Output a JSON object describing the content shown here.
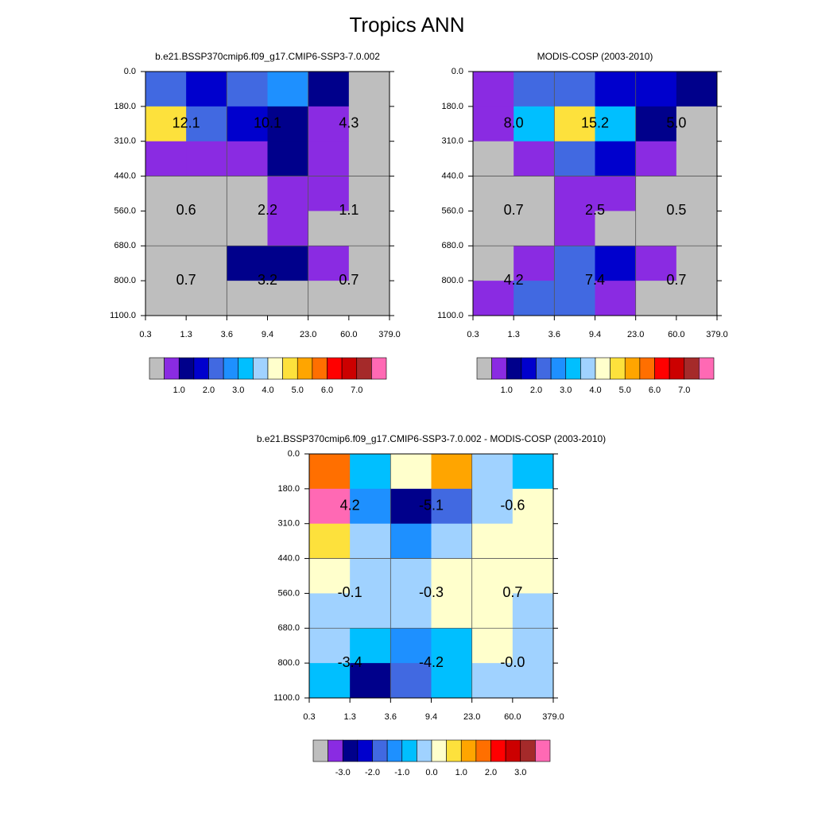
{
  "title": "Tropics ANN",
  "chart_data": [
    {
      "type": "heatmap",
      "title": "b.e21.BSSP370cmip6.f09_g17.CMIP6-SSP3-7.0.002",
      "x_edges": [
        "0.3",
        "1.3",
        "3.6",
        "9.4",
        "23.0",
        "60.0",
        "379.0"
      ],
      "y_edges": [
        "0.0",
        "180.0",
        "310.0",
        "440.0",
        "560.0",
        "680.0",
        "800.0",
        "1100.0"
      ],
      "cell_colors": [
        [
          "#4169e1",
          "#0000cd",
          "#4169e1",
          "#1e90ff",
          "#00008b",
          "#bebebe"
        ],
        [
          "#fde13c",
          "#4169e1",
          "#0000cd",
          "#00008b",
          "#8a2be2",
          "#bebebe"
        ],
        [
          "#8a2be2",
          "#8a2be2",
          "#8a2be2",
          "#00008b",
          "#8a2be2",
          "#bebebe"
        ],
        [
          "#bebebe",
          "#bebebe",
          "#bebebe",
          "#8a2be2",
          "#8a2be2",
          "#bebebe"
        ],
        [
          "#bebebe",
          "#bebebe",
          "#bebebe",
          "#8a2be2",
          "#bebebe",
          "#bebebe"
        ],
        [
          "#bebebe",
          "#bebebe",
          "#00008b",
          "#00008b",
          "#8a2be2",
          "#bebebe"
        ],
        [
          "#bebebe",
          "#bebebe",
          "#bebebe",
          "#bebebe",
          "#bebebe",
          "#bebebe"
        ]
      ],
      "values": [
        12.1,
        10.1,
        4.3,
        0.6,
        2.2,
        1.1,
        0.7,
        3.2,
        0.7
      ],
      "value_labels": [
        "12.1",
        "10.1",
        "4.3",
        "0.6",
        "2.2",
        "1.1",
        "0.7",
        "3.2",
        "0.7"
      ],
      "colorbar": {
        "colors": [
          "#bebebe",
          "#8a2be2",
          "#00008b",
          "#0000cd",
          "#4169e1",
          "#1e90ff",
          "#00bfff",
          "#a0d2ff",
          "#ffffcc",
          "#fde13c",
          "#ffa500",
          "#ff6f00",
          "#ff0000",
          "#cc0000",
          "#a52a2a",
          "#ff69b4"
        ],
        "lim": [
          0,
          8
        ],
        "ticks": [
          {
            "value": 1,
            "label": "1.0"
          },
          {
            "value": 2,
            "label": "2.0"
          },
          {
            "value": 3,
            "label": "3.0"
          },
          {
            "value": 4,
            "label": "4.0"
          },
          {
            "value": 5,
            "label": "5.0"
          },
          {
            "value": 6,
            "label": "6.0"
          },
          {
            "value": 7,
            "label": "7.0"
          }
        ]
      }
    },
    {
      "type": "heatmap",
      "title": "MODIS-COSP (2003-2010)",
      "x_edges": [
        "0.3",
        "1.3",
        "3.6",
        "9.4",
        "23.0",
        "60.0",
        "379.0"
      ],
      "y_edges": [
        "0.0",
        "180.0",
        "310.0",
        "440.0",
        "560.0",
        "680.0",
        "800.0",
        "1100.0"
      ],
      "cell_colors": [
        [
          "#8a2be2",
          "#4169e1",
          "#4169e1",
          "#0000cd",
          "#0000cd",
          "#00008b"
        ],
        [
          "#8a2be2",
          "#00bfff",
          "#fde13c",
          "#00bfff",
          "#00008b",
          "#bebebe"
        ],
        [
          "#bebebe",
          "#8a2be2",
          "#4169e1",
          "#0000cd",
          "#8a2be2",
          "#bebebe"
        ],
        [
          "#bebebe",
          "#bebebe",
          "#8a2be2",
          "#8a2be2",
          "#bebebe",
          "#bebebe"
        ],
        [
          "#bebebe",
          "#bebebe",
          "#8a2be2",
          "#bebebe",
          "#bebebe",
          "#bebebe"
        ],
        [
          "#bebebe",
          "#8a2be2",
          "#4169e1",
          "#0000cd",
          "#8a2be2",
          "#bebebe"
        ],
        [
          "#8a2be2",
          "#4169e1",
          "#4169e1",
          "#8a2be2",
          "#bebebe",
          "#bebebe"
        ]
      ],
      "values": [
        8.0,
        15.2,
        5.0,
        0.7,
        2.5,
        0.5,
        4.2,
        7.4,
        0.7
      ],
      "value_labels": [
        "8.0",
        "15.2",
        "5.0",
        "0.7",
        "2.5",
        "0.5",
        "4.2",
        "7.4",
        "0.7"
      ],
      "colorbar": {
        "colors": [
          "#bebebe",
          "#8a2be2",
          "#00008b",
          "#0000cd",
          "#4169e1",
          "#1e90ff",
          "#00bfff",
          "#a0d2ff",
          "#ffffcc",
          "#fde13c",
          "#ffa500",
          "#ff6f00",
          "#ff0000",
          "#cc0000",
          "#a52a2a",
          "#ff69b4"
        ],
        "lim": [
          0,
          8
        ],
        "ticks": [
          {
            "value": 1,
            "label": "1.0"
          },
          {
            "value": 2,
            "label": "2.0"
          },
          {
            "value": 3,
            "label": "3.0"
          },
          {
            "value": 4,
            "label": "4.0"
          },
          {
            "value": 5,
            "label": "5.0"
          },
          {
            "value": 6,
            "label": "6.0"
          },
          {
            "value": 7,
            "label": "7.0"
          }
        ]
      }
    },
    {
      "type": "heatmap",
      "title": "b.e21.BSSP370cmip6.f09_g17.CMIP6-SSP3-7.0.002 - MODIS-COSP (2003-2010)",
      "x_edges": [
        "0.3",
        "1.3",
        "3.6",
        "9.4",
        "23.0",
        "60.0",
        "379.0"
      ],
      "y_edges": [
        "0.0",
        "180.0",
        "310.0",
        "440.0",
        "560.0",
        "680.0",
        "800.0",
        "1100.0"
      ],
      "cell_colors": [
        [
          "#ff6f00",
          "#00bfff",
          "#ffffcc",
          "#ffa500",
          "#a0d2ff",
          "#00bfff"
        ],
        [
          "#ff69b4",
          "#1e90ff",
          "#00008b",
          "#4169e1",
          "#a0d2ff",
          "#ffffcc"
        ],
        [
          "#fde13c",
          "#a0d2ff",
          "#1e90ff",
          "#a0d2ff",
          "#ffffcc",
          "#ffffcc"
        ],
        [
          "#ffffcc",
          "#a0d2ff",
          "#a0d2ff",
          "#ffffcc",
          "#ffffcc",
          "#ffffcc"
        ],
        [
          "#a0d2ff",
          "#a0d2ff",
          "#a0d2ff",
          "#ffffcc",
          "#ffffcc",
          "#a0d2ff"
        ],
        [
          "#a0d2ff",
          "#00bfff",
          "#1e90ff",
          "#00bfff",
          "#ffffcc",
          "#a0d2ff"
        ],
        [
          "#00bfff",
          "#00008b",
          "#4169e1",
          "#00bfff",
          "#a0d2ff",
          "#a0d2ff"
        ]
      ],
      "values": [
        4.2,
        -5.1,
        -0.6,
        -0.1,
        -0.3,
        0.7,
        -3.4,
        -4.2,
        -0.0
      ],
      "value_labels": [
        "4.2",
        "-5.1",
        "-0.6",
        "-0.1",
        "-0.3",
        "0.7",
        "-3.4",
        "-4.2",
        "-0.0"
      ],
      "colorbar": {
        "colors": [
          "#bebebe",
          "#8a2be2",
          "#00008b",
          "#0000cd",
          "#4169e1",
          "#1e90ff",
          "#00bfff",
          "#a0d2ff",
          "#ffffcc",
          "#fde13c",
          "#ffa500",
          "#ff6f00",
          "#ff0000",
          "#cc0000",
          "#a52a2a",
          "#ff69b4"
        ],
        "lim": [
          -4,
          4
        ],
        "ticks": [
          {
            "value": -3,
            "label": "-3.0"
          },
          {
            "value": -2,
            "label": "-2.0"
          },
          {
            "value": -1,
            "label": "-1.0"
          },
          {
            "value": 0,
            "label": "0.0"
          },
          {
            "value": 1,
            "label": "1.0"
          },
          {
            "value": 2,
            "label": "2.0"
          },
          {
            "value": 3,
            "label": "3.0"
          }
        ]
      }
    }
  ]
}
